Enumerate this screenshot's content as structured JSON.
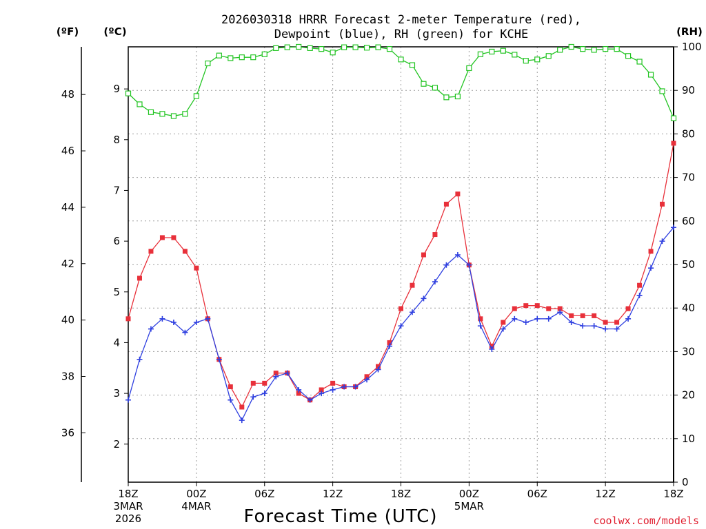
{
  "chart_data": {
    "type": "line",
    "title_line1": "2026030318 HRRR Forecast 2-meter Temperature (red),",
    "title_line2": "Dewpoint (blue), RH (green) for KCHE",
    "units": {
      "f": "(ºF)",
      "c": "(ºC)",
      "rh": "(RH)"
    },
    "xlabel": "Forecast Time (UTC)",
    "credit": "coolwx.com/models",
    "x_ticks": [
      {
        "h": 0,
        "lines": [
          "18Z",
          "3MAR",
          "2026"
        ]
      },
      {
        "h": 6,
        "lines": [
          "00Z",
          "4MAR"
        ]
      },
      {
        "h": 12,
        "lines": [
          "06Z"
        ]
      },
      {
        "h": 18,
        "lines": [
          "12Z"
        ]
      },
      {
        "h": 24,
        "lines": [
          "18Z"
        ]
      },
      {
        "h": 30,
        "lines": [
          "00Z",
          "5MAR"
        ]
      },
      {
        "h": 36,
        "lines": [
          "06Z"
        ]
      },
      {
        "h": 42,
        "lines": [
          "12Z"
        ]
      },
      {
        "h": 48,
        "lines": [
          "18Z"
        ]
      }
    ],
    "xlim": [
      0,
      48
    ],
    "ylim_c": [
      1.25,
      9.83
    ],
    "ylim_rh": [
      0,
      100
    ],
    "ylim_f": [
      34.25,
      49.69
    ],
    "c_ticks": [
      "2",
      "3",
      "4",
      "5",
      "6",
      "7",
      "8",
      "9"
    ],
    "f_ticks": [
      "36",
      "38",
      "40",
      "42",
      "44",
      "46",
      "48"
    ],
    "rh_ticks": [
      "0",
      "10",
      "20",
      "30",
      "40",
      "50",
      "60",
      "70",
      "80",
      "90",
      "100"
    ],
    "colors": {
      "temperature": "#e8303a",
      "dewpoint": "#2e3fe0",
      "rh": "#22c422"
    },
    "series": [
      {
        "name": "Temperature",
        "unit": "C",
        "values": [
          4.47,
          5.27,
          5.8,
          6.07,
          6.07,
          5.8,
          5.47,
          4.47,
          3.67,
          3.13,
          2.73,
          3.2,
          3.2,
          3.4,
          3.4,
          3.0,
          2.87,
          3.07,
          3.2,
          3.13,
          3.13,
          3.33,
          3.53,
          4.0,
          4.67,
          5.13,
          5.73,
          6.13,
          6.73,
          6.93,
          5.53,
          4.47,
          3.93,
          4.4,
          4.67,
          4.73,
          4.73,
          4.67,
          4.67,
          4.53,
          4.53,
          4.53,
          4.4,
          4.4,
          4.67,
          5.13,
          5.8,
          6.73,
          7.93
        ]
      },
      {
        "name": "Dewpoint",
        "unit": "C",
        "values": [
          2.87,
          3.67,
          4.27,
          4.47,
          4.4,
          4.2,
          4.4,
          4.47,
          3.67,
          2.87,
          2.47,
          2.93,
          3.0,
          3.33,
          3.4,
          3.07,
          2.87,
          3.0,
          3.07,
          3.13,
          3.13,
          3.27,
          3.47,
          3.93,
          4.33,
          4.6,
          4.87,
          5.2,
          5.53,
          5.73,
          5.53,
          4.33,
          3.87,
          4.27,
          4.47,
          4.4,
          4.47,
          4.47,
          4.6,
          4.4,
          4.33,
          4.33,
          4.27,
          4.27,
          4.47,
          4.93,
          5.47,
          6.0,
          6.27
        ]
      },
      {
        "name": "RH",
        "unit": "%",
        "values": [
          89.3,
          86.8,
          85.0,
          84.6,
          84.1,
          84.6,
          88.7,
          96.2,
          98.0,
          97.4,
          97.6,
          97.6,
          98.3,
          99.7,
          99.9,
          100.0,
          99.7,
          99.5,
          98.7,
          99.9,
          99.9,
          99.8,
          99.9,
          99.5,
          97.1,
          95.8,
          91.5,
          90.6,
          88.4,
          88.6,
          95.1,
          98.3,
          98.9,
          99.1,
          98.2,
          96.8,
          97.1,
          97.9,
          99.3,
          100.0,
          99.5,
          99.3,
          99.5,
          99.5,
          97.9,
          96.6,
          93.6,
          89.8,
          83.6
        ]
      }
    ]
  }
}
